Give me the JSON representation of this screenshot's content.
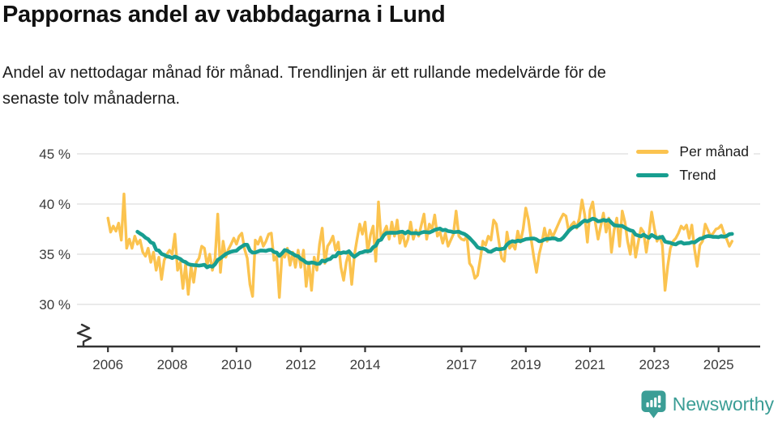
{
  "header": {
    "title": "Pappornas andel av vabbdagarna i Lund",
    "subtitle_line1": "Andel av nettodagar månad för månad. Trendlinjen är ett rullande medelvärde för de",
    "subtitle_line2": "senaste tolv månaderna."
  },
  "legend": [
    {
      "label": "Per månad",
      "color": "#FBC34F"
    },
    {
      "label": "Trend",
      "color": "#179E90"
    }
  ],
  "footer": {
    "brand": "Newsworthy",
    "brand_color": "#3a9d95"
  },
  "chart_data": {
    "type": "line",
    "title": "Pappornas andel av vabbdagarna i Lund",
    "subtitle": "Andel av nettodagar månad för månad. Trendlinjen är ett rullande medelvärde för de senaste tolv månaderna.",
    "unit": "%",
    "x_monthly_start": "2006-01",
    "x_monthly_end": "2025-06",
    "x_tick_years": [
      2006,
      2008,
      2010,
      2012,
      2014,
      2017,
      2019,
      2021,
      2023,
      2025
    ],
    "y_ticks": [
      45,
      40,
      35,
      30
    ],
    "y_tick_labels": [
      "45 %",
      "40 %",
      "35 %",
      "30 %"
    ],
    "ylim": [
      29.5,
      46
    ],
    "y_axis_break": true,
    "grid": "horizontal",
    "legend_position": "top-right",
    "axis_color": "#333333",
    "grid_color": "#dddddd",
    "series": [
      {
        "name": "Per månad",
        "color": "#FBC34F",
        "values": [
          38.6,
          37.2,
          37.8,
          37.3,
          38.1,
          36.4,
          41.0,
          35.6,
          36.5,
          35.6,
          36.8,
          36.0,
          36.4,
          35.2,
          34.8,
          35.6,
          34.2,
          35.2,
          33.4,
          34.7,
          32.5,
          34.4,
          35.0,
          35.4,
          35.0,
          37.0,
          33.4,
          34.2,
          31.6,
          34.0,
          31.0,
          33.8,
          32.2,
          34.2,
          34.6,
          35.8,
          35.6,
          33.9,
          35.0,
          33.4,
          34.6,
          39.0,
          33.2,
          36.3,
          34.7,
          35.5,
          36.0,
          36.6,
          36.0,
          36.8,
          37.1,
          35.5,
          34.6,
          32.0,
          30.8,
          36.4,
          36.0,
          36.7,
          35.8,
          36.3,
          37.0,
          37.1,
          34.4,
          34.8,
          30.7,
          35.1,
          34.7,
          35.6,
          33.9,
          35.2,
          33.7,
          35.4,
          33.7,
          35.4,
          31.8,
          34.2,
          31.4,
          34.7,
          33.4,
          36.0,
          37.6,
          34.1,
          35.8,
          36.2,
          36.8,
          35.4,
          36.2,
          33.7,
          32.4,
          34.2,
          35.2,
          32.0,
          34.9,
          36.5,
          38.0,
          37.0,
          38.2,
          35.2,
          36.9,
          37.8,
          34.3,
          40.2,
          36.4,
          37.2,
          37.8,
          36.5,
          38.2,
          36.8,
          38.4,
          36.1,
          37.2,
          35.8,
          36.5,
          38.2,
          36.5,
          37.4,
          36.8,
          37.9,
          39.0,
          36.5,
          38.0,
          37.5,
          38.9,
          36.8,
          37.2,
          36.1,
          37.1,
          35.8,
          36.4,
          37.0,
          39.3,
          36.8,
          36.5,
          36.4,
          36.8,
          34.1,
          33.7,
          32.6,
          32.9,
          34.5,
          36.3,
          35.9,
          36.8,
          36.4,
          38.4,
          38.0,
          36.2,
          34.6,
          34.3,
          37.2,
          35.6,
          36.0,
          35.5,
          37.3,
          36.2,
          37.5,
          39.6,
          38.4,
          36.5,
          34.7,
          33.2,
          35.0,
          36.1,
          37.6,
          36.3,
          37.4,
          36.7,
          37.3,
          37.9,
          38.5,
          39.0,
          38.8,
          37.3,
          37.9,
          38.2,
          37.6,
          38.6,
          40.4,
          38.9,
          36.2,
          39.4,
          40.2,
          38.1,
          36.5,
          37.8,
          39.1,
          37.2,
          38.6,
          35.2,
          37.4,
          38.6,
          35.8,
          39.3,
          38.2,
          36.3,
          35.0,
          37.1,
          34.7,
          36.2,
          37.6,
          37.2,
          35.2,
          37.0,
          39.2,
          37.6,
          36.3,
          36.8,
          35.9,
          31.4,
          33.8,
          35.6,
          36.3,
          36.6,
          37.1,
          37.8,
          37.5,
          37.9,
          36.6,
          37.9,
          35.5,
          33.8,
          35.9,
          36.3,
          38.0,
          37.4,
          36.8,
          37.1,
          37.5,
          37.6,
          37.9,
          37.1,
          36.5,
          35.8,
          36.3
        ]
      },
      {
        "name": "Trend",
        "color": "#179E90",
        "derived": "rolling_mean",
        "window": 12
      }
    ]
  }
}
